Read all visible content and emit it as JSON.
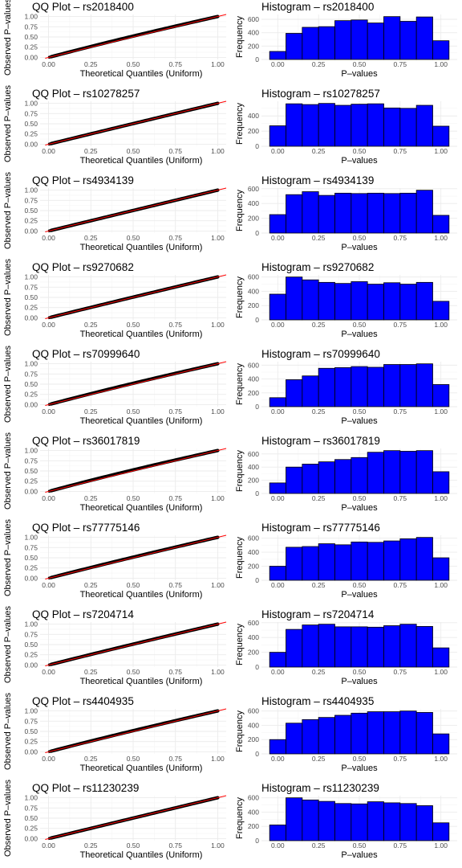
{
  "charts": [
    {
      "qq": {
        "title": "QQ Plot – rs2018400",
        "xlabel": "Theoretical Quantiles (Uniform)",
        "ylabel": "Observed P–values",
        "bow": 0.1
      },
      "hist": {
        "title": "Histogram – rs2018400",
        "xlabel": "P–values",
        "ylabel": "Frequency",
        "yticks": [
          0,
          200,
          400,
          600
        ],
        "counts": [
          120,
          390,
          480,
          490,
          580,
          590,
          545,
          640,
          570,
          635,
          280
        ]
      }
    },
    {
      "qq": {
        "title": "QQ Plot – rs10278257",
        "xlabel": "Theoretical Quantiles (Uniform)",
        "ylabel": "Observed P–values",
        "bow": 0.02
      },
      "hist": {
        "title": "Histogram – rs10278257",
        "xlabel": "P–values",
        "ylabel": "Frequency",
        "yticks": [
          0,
          200,
          400
        ],
        "counts": [
          270,
          560,
          550,
          565,
          540,
          555,
          560,
          505,
          500,
          540,
          265
        ]
      }
    },
    {
      "qq": {
        "title": "QQ Plot – rs4934139",
        "xlabel": "Theoretical Quantiles (Uniform)",
        "ylabel": "Observed P–values",
        "bow": 0.01
      },
      "hist": {
        "title": "Histogram – rs4934139",
        "xlabel": "P–values",
        "ylabel": "Frequency",
        "yticks": [
          0,
          200,
          400,
          600
        ],
        "counts": [
          250,
          520,
          560,
          510,
          540,
          535,
          540,
          535,
          540,
          580,
          240
        ]
      }
    },
    {
      "qq": {
        "title": "QQ Plot – rs9270682",
        "xlabel": "Theoretical Quantiles (Uniform)",
        "ylabel": "Observed P–values",
        "bow": 0.03
      },
      "hist": {
        "title": "Histogram – rs9270682",
        "xlabel": "P–values",
        "ylabel": "Frequency",
        "yticks": [
          0,
          200,
          400,
          600
        ],
        "counts": [
          360,
          600,
          560,
          525,
          510,
          535,
          500,
          520,
          500,
          525,
          260
        ]
      }
    },
    {
      "qq": {
        "title": "QQ Plot – rs70999640",
        "xlabel": "Theoretical Quantiles (Uniform)",
        "ylabel": "Observed P–values",
        "bow": 0.1
      },
      "hist": {
        "title": "Histogram – rs70999640",
        "xlabel": "P–values",
        "ylabel": "Frequency",
        "yticks": [
          0,
          200,
          400,
          600
        ],
        "counts": [
          130,
          390,
          445,
          555,
          565,
          580,
          570,
          610,
          610,
          620,
          320
        ]
      }
    },
    {
      "qq": {
        "title": "QQ Plot – rs36017819",
        "xlabel": "Theoretical Quantiles (Uniform)",
        "ylabel": "Observed P–values",
        "bow": 0.12
      },
      "hist": {
        "title": "Histogram – rs36017819",
        "xlabel": "P–values",
        "ylabel": "Frequency",
        "yticks": [
          0,
          200,
          400,
          600
        ],
        "counts": [
          160,
          400,
          445,
          480,
          515,
          545,
          625,
          650,
          640,
          650,
          330
        ]
      }
    },
    {
      "qq": {
        "title": "QQ Plot – rs77775146",
        "xlabel": "Theoretical Quantiles (Uniform)",
        "ylabel": "Observed P–values",
        "bow": 0.07
      },
      "hist": {
        "title": "Histogram – rs77775146",
        "xlabel": "P–values",
        "ylabel": "Frequency",
        "yticks": [
          0,
          200,
          400,
          600
        ],
        "counts": [
          200,
          470,
          480,
          520,
          505,
          545,
          540,
          560,
          590,
          610,
          320
        ]
      }
    },
    {
      "qq": {
        "title": "QQ Plot – rs7204714",
        "xlabel": "Theoretical Quantiles (Uniform)",
        "ylabel": "Observed P–values",
        "bow": 0.05
      },
      "hist": {
        "title": "Histogram – rs7204714",
        "xlabel": "P–values",
        "ylabel": "Frequency",
        "yticks": [
          0,
          200,
          400,
          600
        ],
        "counts": [
          200,
          510,
          570,
          580,
          545,
          545,
          540,
          560,
          580,
          550,
          260
        ]
      }
    },
    {
      "qq": {
        "title": "QQ Plot – rs4404935",
        "xlabel": "Theoretical Quantiles (Uniform)",
        "ylabel": "Observed P–values",
        "bow": 0.08
      },
      "hist": {
        "title": "Histogram – rs4404935",
        "xlabel": "P–values",
        "ylabel": "Frequency",
        "yticks": [
          0,
          200,
          400,
          600
        ],
        "counts": [
          200,
          430,
          480,
          510,
          540,
          570,
          590,
          590,
          600,
          580,
          280
        ]
      }
    },
    {
      "qq": {
        "title": "QQ Plot – rs11230239",
        "xlabel": "Theoretical Quantiles (Uniform)",
        "ylabel": "Observed P–values",
        "bow": 0.01
      },
      "hist": {
        "title": "Histogram – rs11230239",
        "xlabel": "P–values",
        "ylabel": "Frequency",
        "yticks": [
          0,
          200,
          400,
          600
        ],
        "counts": [
          220,
          600,
          570,
          550,
          520,
          515,
          545,
          530,
          520,
          490,
          250
        ]
      }
    }
  ],
  "chart_data": [
    {
      "type": "scatter",
      "title": "QQ Plot – rs2018400",
      "xlabel": "Theoretical Quantiles (Uniform)",
      "ylabel": "Observed P–values",
      "xlim": [
        0,
        1
      ],
      "ylim": [
        0,
        1
      ],
      "xticks": [
        "0.00",
        "0.25",
        "0.50",
        "0.75",
        "1.00"
      ],
      "yticks": [
        "0.00",
        "0.25",
        "0.50",
        "0.75",
        "1.00"
      ],
      "reference_line": "y = x",
      "reference_color": "#ff0000",
      "point_color": "#000000",
      "grid": true
    },
    {
      "type": "bar",
      "title": "Histogram – rs2018400",
      "xlabel": "P–values",
      "ylabel": "Frequency",
      "bin_width": 0.1,
      "bin_centers": [
        0,
        0.1,
        0.2,
        0.3,
        0.4,
        0.5,
        0.6,
        0.7,
        0.8,
        0.9,
        1.0
      ],
      "values": [
        120,
        390,
        480,
        490,
        580,
        590,
        545,
        640,
        570,
        635,
        280
      ],
      "color": "#0000ff",
      "grid": true
    },
    {
      "type": "scatter",
      "title": "QQ Plot – rs10278257",
      "xlabel": "Theoretical Quantiles (Uniform)",
      "ylabel": "Observed P–values",
      "xlim": [
        0,
        1
      ],
      "ylim": [
        0,
        1
      ],
      "reference_line": "y = x",
      "grid": true
    },
    {
      "type": "bar",
      "title": "Histogram – rs10278257",
      "xlabel": "P–values",
      "ylabel": "Frequency",
      "bin_width": 0.1,
      "bin_centers": [
        0,
        0.1,
        0.2,
        0.3,
        0.4,
        0.5,
        0.6,
        0.7,
        0.8,
        0.9,
        1.0
      ],
      "values": [
        270,
        560,
        550,
        565,
        540,
        555,
        560,
        505,
        500,
        540,
        265
      ],
      "color": "#0000ff",
      "grid": true
    },
    {
      "type": "scatter",
      "title": "QQ Plot – rs4934139",
      "xlabel": "Theoretical Quantiles (Uniform)",
      "ylabel": "Observed P–values",
      "xlim": [
        0,
        1
      ],
      "ylim": [
        0,
        1
      ],
      "reference_line": "y = x",
      "grid": true
    },
    {
      "type": "bar",
      "title": "Histogram – rs4934139",
      "xlabel": "P–values",
      "ylabel": "Frequency",
      "bin_width": 0.1,
      "bin_centers": [
        0,
        0.1,
        0.2,
        0.3,
        0.4,
        0.5,
        0.6,
        0.7,
        0.8,
        0.9,
        1.0
      ],
      "values": [
        250,
        520,
        560,
        510,
        540,
        535,
        540,
        535,
        540,
        580,
        240
      ],
      "color": "#0000ff",
      "grid": true
    },
    {
      "type": "scatter",
      "title": "QQ Plot – rs9270682",
      "xlabel": "Theoretical Quantiles (Uniform)",
      "ylabel": "Observed P–values",
      "xlim": [
        0,
        1
      ],
      "ylim": [
        0,
        1
      ],
      "reference_line": "y = x",
      "grid": true
    },
    {
      "type": "bar",
      "title": "Histogram – rs9270682",
      "xlabel": "P–values",
      "ylabel": "Frequency",
      "bin_width": 0.1,
      "bin_centers": [
        0,
        0.1,
        0.2,
        0.3,
        0.4,
        0.5,
        0.6,
        0.7,
        0.8,
        0.9,
        1.0
      ],
      "values": [
        360,
        600,
        560,
        525,
        510,
        535,
        500,
        520,
        500,
        525,
        260
      ],
      "color": "#0000ff",
      "grid": true
    },
    {
      "type": "scatter",
      "title": "QQ Plot – rs70999640",
      "xlabel": "Theoretical Quantiles (Uniform)",
      "ylabel": "Observed P–values",
      "xlim": [
        0,
        1
      ],
      "ylim": [
        0,
        1
      ],
      "reference_line": "y = x",
      "grid": true
    },
    {
      "type": "bar",
      "title": "Histogram – rs70999640",
      "xlabel": "P–values",
      "ylabel": "Frequency",
      "bin_width": 0.1,
      "bin_centers": [
        0,
        0.1,
        0.2,
        0.3,
        0.4,
        0.5,
        0.6,
        0.7,
        0.8,
        0.9,
        1.0
      ],
      "values": [
        130,
        390,
        445,
        555,
        565,
        580,
        570,
        610,
        610,
        620,
        320
      ],
      "color": "#0000ff",
      "grid": true
    },
    {
      "type": "scatter",
      "title": "QQ Plot – rs36017819",
      "xlabel": "Theoretical Quantiles (Uniform)",
      "ylabel": "Observed P–values",
      "xlim": [
        0,
        1
      ],
      "ylim": [
        0,
        1
      ],
      "reference_line": "y = x",
      "grid": true
    },
    {
      "type": "bar",
      "title": "Histogram – rs36017819",
      "xlabel": "P–values",
      "ylabel": "Frequency",
      "bin_width": 0.1,
      "bin_centers": [
        0,
        0.1,
        0.2,
        0.3,
        0.4,
        0.5,
        0.6,
        0.7,
        0.8,
        0.9,
        1.0
      ],
      "values": [
        160,
        400,
        445,
        480,
        515,
        545,
        625,
        650,
        640,
        650,
        330
      ],
      "color": "#0000ff",
      "grid": true
    },
    {
      "type": "scatter",
      "title": "QQ Plot – rs77775146",
      "xlabel": "Theoretical Quantiles (Uniform)",
      "ylabel": "Observed P–values",
      "xlim": [
        0,
        1
      ],
      "ylim": [
        0,
        1
      ],
      "reference_line": "y = x",
      "grid": true
    },
    {
      "type": "bar",
      "title": "Histogram – rs77775146",
      "xlabel": "P–values",
      "ylabel": "Frequency",
      "bin_width": 0.1,
      "bin_centers": [
        0,
        0.1,
        0.2,
        0.3,
        0.4,
        0.5,
        0.6,
        0.7,
        0.8,
        0.9,
        1.0
      ],
      "values": [
        200,
        470,
        480,
        520,
        505,
        545,
        540,
        560,
        590,
        610,
        320
      ],
      "color": "#0000ff",
      "grid": true
    },
    {
      "type": "scatter",
      "title": "QQ Plot – rs7204714",
      "xlabel": "Theoretical Quantiles (Uniform)",
      "ylabel": "Observed P–values",
      "xlim": [
        0,
        1
      ],
      "ylim": [
        0,
        1
      ],
      "reference_line": "y = x",
      "grid": true
    },
    {
      "type": "bar",
      "title": "Histogram – rs7204714",
      "xlabel": "P–values",
      "ylabel": "Frequency",
      "bin_width": 0.1,
      "bin_centers": [
        0,
        0.1,
        0.2,
        0.3,
        0.4,
        0.5,
        0.6,
        0.7,
        0.8,
        0.9,
        1.0
      ],
      "values": [
        200,
        510,
        570,
        580,
        545,
        545,
        540,
        560,
        580,
        550,
        260
      ],
      "color": "#0000ff",
      "grid": true
    },
    {
      "type": "scatter",
      "title": "QQ Plot – rs4404935",
      "xlabel": "Theoretical Quantiles (Uniform)",
      "ylabel": "Observed P–values",
      "xlim": [
        0,
        1
      ],
      "ylim": [
        0,
        1
      ],
      "reference_line": "y = x",
      "grid": true
    },
    {
      "type": "bar",
      "title": "Histogram – rs4404935",
      "xlabel": "P–values",
      "ylabel": "Frequency",
      "bin_width": 0.1,
      "bin_centers": [
        0,
        0.1,
        0.2,
        0.3,
        0.4,
        0.5,
        0.6,
        0.7,
        0.8,
        0.9,
        1.0
      ],
      "values": [
        200,
        430,
        480,
        510,
        540,
        570,
        590,
        590,
        600,
        580,
        280
      ],
      "color": "#0000ff",
      "grid": true
    },
    {
      "type": "scatter",
      "title": "QQ Plot – rs11230239",
      "xlabel": "Theoretical Quantiles (Uniform)",
      "ylabel": "Observed P–values",
      "xlim": [
        0,
        1
      ],
      "ylim": [
        0,
        1
      ],
      "reference_line": "y = x",
      "grid": true
    },
    {
      "type": "bar",
      "title": "Histogram – rs11230239",
      "xlabel": "P–values",
      "ylabel": "Frequency",
      "bin_width": 0.1,
      "bin_centers": [
        0,
        0.1,
        0.2,
        0.3,
        0.4,
        0.5,
        0.6,
        0.7,
        0.8,
        0.9,
        1.0
      ],
      "values": [
        220,
        600,
        570,
        550,
        520,
        515,
        545,
        530,
        520,
        490,
        250
      ],
      "color": "#0000ff",
      "grid": true
    }
  ],
  "axes": {
    "qq_ticks": [
      "0.00",
      "0.25",
      "0.50",
      "0.75",
      "1.00"
    ],
    "hist_xticks": [
      "0.00",
      "0.25",
      "0.50",
      "0.75",
      "1.00"
    ]
  },
  "colors": {
    "background": "#ffffff",
    "grid_major": "#ebebeb",
    "grid_minor": "#f5f5f5",
    "qq_points": "#000000",
    "qq_reference": "#ff0000",
    "hist_fill": "#0000ff",
    "hist_outline": "#000000",
    "tick_text": "#4d4d4d"
  }
}
